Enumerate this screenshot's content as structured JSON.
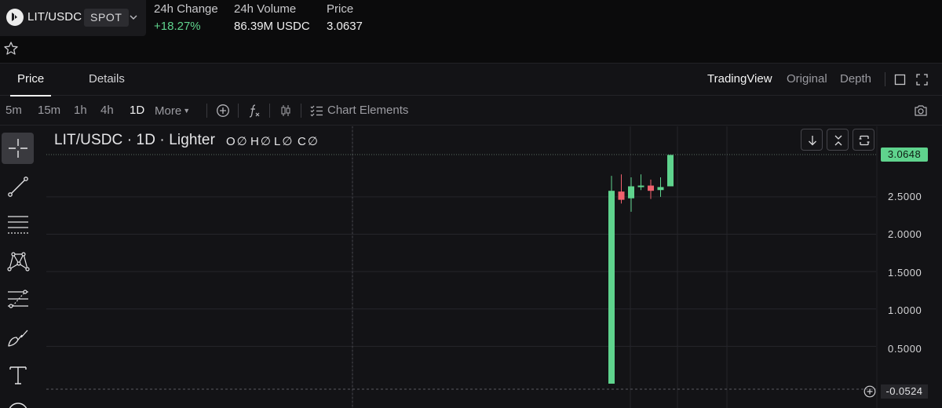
{
  "header": {
    "pair": "LIT/USDC",
    "market_type": "SPOT",
    "stats": [
      {
        "label": "24h Change",
        "value": "+18.27%"
      },
      {
        "label": "24h Volume",
        "value": "86.39M USDC"
      },
      {
        "label": "Price",
        "value": "3.0637"
      }
    ]
  },
  "tabs": {
    "price": "Price",
    "details": "Details"
  },
  "view_options": [
    "TradingView",
    "Original",
    "Depth"
  ],
  "timeframes": [
    "5m",
    "15m",
    "1h",
    "4h",
    "1D"
  ],
  "active_timeframe": "1D",
  "toolbar": {
    "more": "More",
    "chart_elements": "Chart Elements"
  },
  "chart": {
    "title": "LIT/USDC · 1D · Lighter",
    "ohlc": [
      {
        "key": "O",
        "value": "∅"
      },
      {
        "key": "H",
        "value": "∅"
      },
      {
        "key": "L",
        "value": "∅"
      },
      {
        "key": "C",
        "value": "∅"
      }
    ],
    "last_price_tag": "3.0648",
    "crosshair_price_tag": "-0.0524",
    "y_axis_labels": [
      "2.5000",
      "2.0000",
      "1.5000",
      "1.0000",
      "0.5000"
    ]
  },
  "chart_data": {
    "type": "candlestick",
    "title": "LIT/USDC · 1D · Lighter",
    "y_axis_ticks": [
      0.5,
      1.0,
      1.5,
      2.0,
      2.5
    ],
    "ylim": [
      -0.0524,
      3.0648
    ],
    "last_price": 3.0648,
    "candles": [
      {
        "open": 0.0,
        "high": 2.78,
        "low": 0.0,
        "close": 2.58,
        "color": "green"
      },
      {
        "open": 2.57,
        "high": 2.8,
        "low": 2.41,
        "close": 2.46,
        "color": "red"
      },
      {
        "open": 2.48,
        "high": 2.76,
        "low": 2.3,
        "close": 2.64,
        "color": "green"
      },
      {
        "open": 2.63,
        "high": 2.8,
        "low": 2.59,
        "close": 2.65,
        "color": "green"
      },
      {
        "open": 2.65,
        "high": 2.73,
        "low": 2.47,
        "close": 2.58,
        "color": "red"
      },
      {
        "open": 2.59,
        "high": 2.76,
        "low": 2.5,
        "close": 2.63,
        "color": "green"
      },
      {
        "open": 2.64,
        "high": 3.06,
        "low": 2.64,
        "close": 3.06,
        "color": "green"
      }
    ],
    "colors": {
      "up": "#5fd38d",
      "down": "#f0616d",
      "grid": "#26262b"
    }
  }
}
